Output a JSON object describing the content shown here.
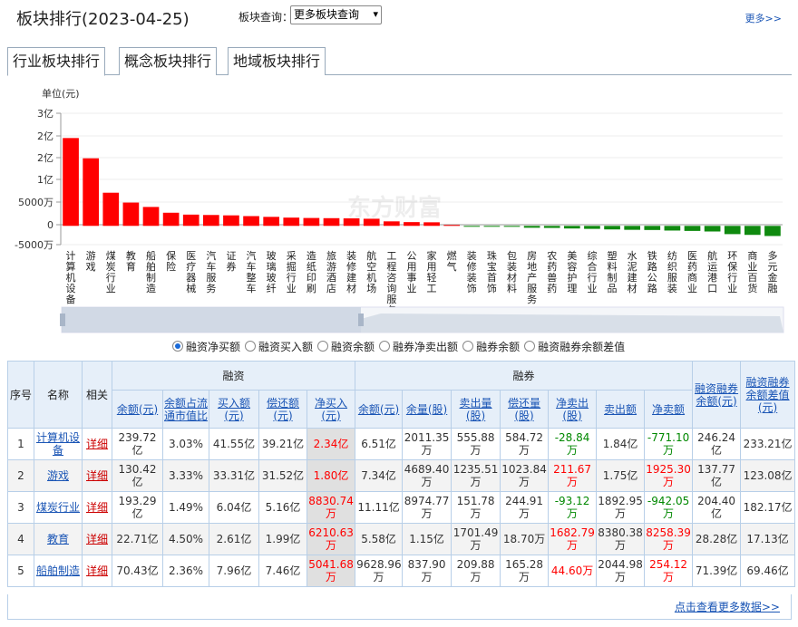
{
  "header": {
    "title": "板块排行(2023-04-25)",
    "query_label": "板块查询：",
    "query_select": "更多板块查询",
    "more_link": "更多>>"
  },
  "tabs": [
    "行业板块排行",
    "概念板块排行",
    "地域板块排行"
  ],
  "chart_data": {
    "type": "bar",
    "ylabel": "单位(元)",
    "yticks": [
      "3亿",
      "2亿",
      "2亿",
      "1亿",
      "5000万",
      "0",
      "-5000万"
    ],
    "ylim": [
      -50000000,
      300000000
    ],
    "watermark": "东方财富",
    "categories": [
      "计算机设备",
      "游戏",
      "煤炭行业",
      "教育",
      "船舶制造",
      "保险",
      "医疗器械",
      "汽车服务",
      "证券",
      "汽车整车",
      "玻璃玻纤",
      "采掘行业",
      "造纸印刷",
      "旅游酒店",
      "装修建材",
      "航空机场",
      "工程咨询服务",
      "公用事业",
      "家用轻工",
      "燃气",
      "装修装饰",
      "珠宝首饰",
      "包装材料",
      "房地产服务",
      "农药兽药",
      "美容护理",
      "综合行业",
      "塑料制品",
      "水泥建材",
      "铁路公路",
      "纺织服装",
      "医药商业",
      "航运港口",
      "环保行业",
      "商业百货",
      "多元金融"
    ],
    "values": [
      234000000,
      180000000,
      88300000,
      62100000,
      50400000,
      35000000,
      30000000,
      29000000,
      28000000,
      26000000,
      24000000,
      22000000,
      21000000,
      20500000,
      20000000,
      19000000,
      12000000,
      10000000,
      9500000,
      1500000,
      -1000000,
      -1500000,
      -2500000,
      -5000000,
      -5500000,
      -7000000,
      -8000000,
      -9500000,
      -10500000,
      -11000000,
      -12500000,
      -13500000,
      -15000000,
      -22000000,
      -24000000,
      -27000000
    ],
    "colors": {
      "positive": "#ff0000",
      "negative": "#0f8a0f"
    }
  },
  "radios": [
    {
      "label": "融资净买额",
      "checked": true
    },
    {
      "label": "融资买入额",
      "checked": false
    },
    {
      "label": "融资余额",
      "checked": false
    },
    {
      "label": "融券净卖出额",
      "checked": false
    },
    {
      "label": "融券余额",
      "checked": false
    },
    {
      "label": "融资融券余额差值",
      "checked": false
    }
  ],
  "table": {
    "head": {
      "seq": "序号",
      "name": "名称",
      "related": "相关",
      "rz_group": "融资",
      "rq_group": "融券",
      "rzrq_balance": "融资融券余额(元)",
      "rzrq_diff": "融资融券余额差值(元)",
      "rz_cols": [
        "余额(元)",
        "余额占流通市值比",
        "买入额(元)",
        "偿还额(元)",
        "净买入(元)"
      ],
      "rq_cols": [
        "余额(元)",
        "余量(股)",
        "卖出量(股)",
        "偿还量(股)",
        "净卖出(股)",
        "卖出额",
        "净卖额"
      ]
    },
    "rows": [
      {
        "seq": "1",
        "name": "计算机设备",
        "detail": "详细",
        "rz": [
          "239.72亿",
          "3.03%",
          "41.55亿",
          "39.21亿",
          "2.34亿"
        ],
        "rq": [
          "6.51亿",
          "2011.35万",
          "555.88万",
          "584.72万",
          "-28.84万",
          "1.84亿",
          "-771.10万"
        ],
        "bal": "246.24亿",
        "diff": "233.21亿"
      },
      {
        "seq": "2",
        "name": "游戏",
        "detail": "详细",
        "rz": [
          "130.42亿",
          "3.33%",
          "33.31亿",
          "31.52亿",
          "1.80亿"
        ],
        "rq": [
          "7.34亿",
          "4689.40万",
          "1235.51万",
          "1023.84万",
          "211.67万",
          "1.75亿",
          "1925.30万"
        ],
        "bal": "137.77亿",
        "diff": "123.08亿"
      },
      {
        "seq": "3",
        "name": "煤炭行业",
        "detail": "详细",
        "rz": [
          "193.29亿",
          "1.49%",
          "6.04亿",
          "5.16亿",
          "8830.74万"
        ],
        "rq": [
          "11.11亿",
          "8974.77万",
          "151.78万",
          "244.91万",
          "-93.12万",
          "1892.95万",
          "-942.05万"
        ],
        "bal": "204.40亿",
        "diff": "182.17亿"
      },
      {
        "seq": "4",
        "name": "教育",
        "detail": "详细",
        "rz": [
          "22.71亿",
          "4.50%",
          "2.61亿",
          "1.99亿",
          "6210.63万"
        ],
        "rq": [
          "5.58亿",
          "1.15亿",
          "1701.49万",
          "18.70万",
          "1682.79万",
          "8380.38万",
          "8258.39万"
        ],
        "bal": "28.28亿",
        "diff": "17.13亿"
      },
      {
        "seq": "5",
        "name": "船舶制造",
        "detail": "详细",
        "rz": [
          "70.43亿",
          "2.36%",
          "7.96亿",
          "7.46亿",
          "5041.68万"
        ],
        "rq": [
          "9628.96万",
          "837.90万",
          "209.88万",
          "165.28万",
          "44.60万",
          "2044.98万",
          "254.12万"
        ],
        "bal": "71.39亿",
        "diff": "69.46亿"
      }
    ],
    "net_buy_sign": [
      1,
      1,
      1,
      1,
      1
    ],
    "net_sell_sign": [
      -1,
      1,
      -1,
      1,
      1
    ],
    "net_sell_amt_sign": [
      -1,
      1,
      -1,
      1,
      1
    ]
  },
  "footer_link": "点击查看更多数据>>"
}
